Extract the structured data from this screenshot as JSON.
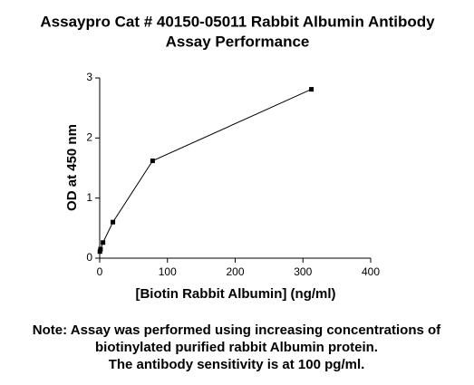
{
  "chart_data": {
    "type": "line",
    "title": [
      "Assaypro Cat # 40150-05011 Rabbit Albumin Antibody",
      "Assay Performance"
    ],
    "x_label": "[Biotin Rabbit Albumin] (ng/ml)",
    "y_label": "OD at 450 nm",
    "x": [
      0.3,
      1.2,
      4.9,
      19.5,
      78.1,
      312.5
    ],
    "series": [
      {
        "color": "#000000",
        "values": [
          0.11,
          0.15,
          0.26,
          0.6,
          1.62,
          2.81
        ]
      }
    ],
    "xlim": [
      0,
      400
    ],
    "xticks": [
      0,
      100,
      200,
      300,
      400
    ],
    "ylim": [
      0,
      3
    ],
    "yticks": [
      0,
      1,
      2,
      3
    ],
    "grid": false,
    "note": [
      "Note: Assay was performed using increasing concentrations of",
      "biotinylated purified rabbit Albumin protein.",
      "The antibody sensitivity is at 100 pg/ml."
    ]
  }
}
